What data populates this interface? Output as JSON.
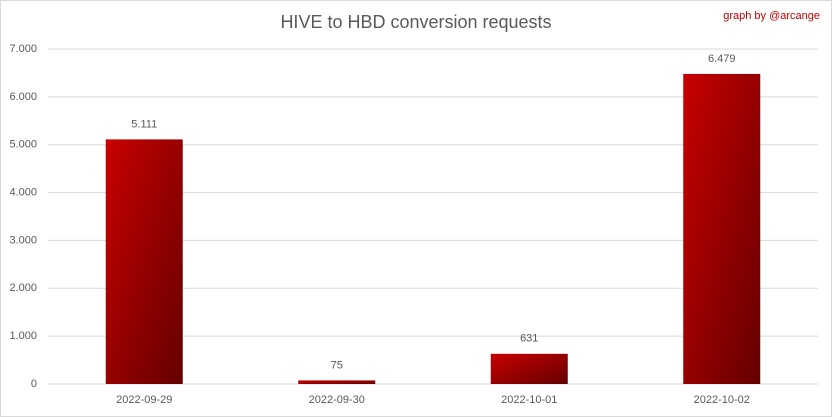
{
  "chart_data": {
    "type": "bar",
    "title": "HIVE to HBD conversion requests",
    "annotation": "graph by @arcange",
    "categories": [
      "2022-09-29",
      "2022-09-30",
      "2022-10-01",
      "2022-10-02"
    ],
    "values": [
      5111,
      75,
      631,
      6479
    ],
    "value_labels": [
      "5.111",
      "75",
      "631",
      "6.479"
    ],
    "color": "#c80000",
    "ylim": [
      0,
      7000
    ],
    "yticks": [
      0,
      {
        "value": 1000,
        "label": "1.000"
      },
      {
        "value": 2000,
        "label": "2.000"
      },
      {
        "value": 3000,
        "label": "3.000"
      },
      {
        "value": 4000,
        "label": "4.000"
      },
      {
        "value": 5000,
        "label": "5.000"
      },
      {
        "value": 6000,
        "label": "6.000"
      },
      {
        "value": 7000,
        "label": "7.000"
      }
    ],
    "grid": true
  }
}
